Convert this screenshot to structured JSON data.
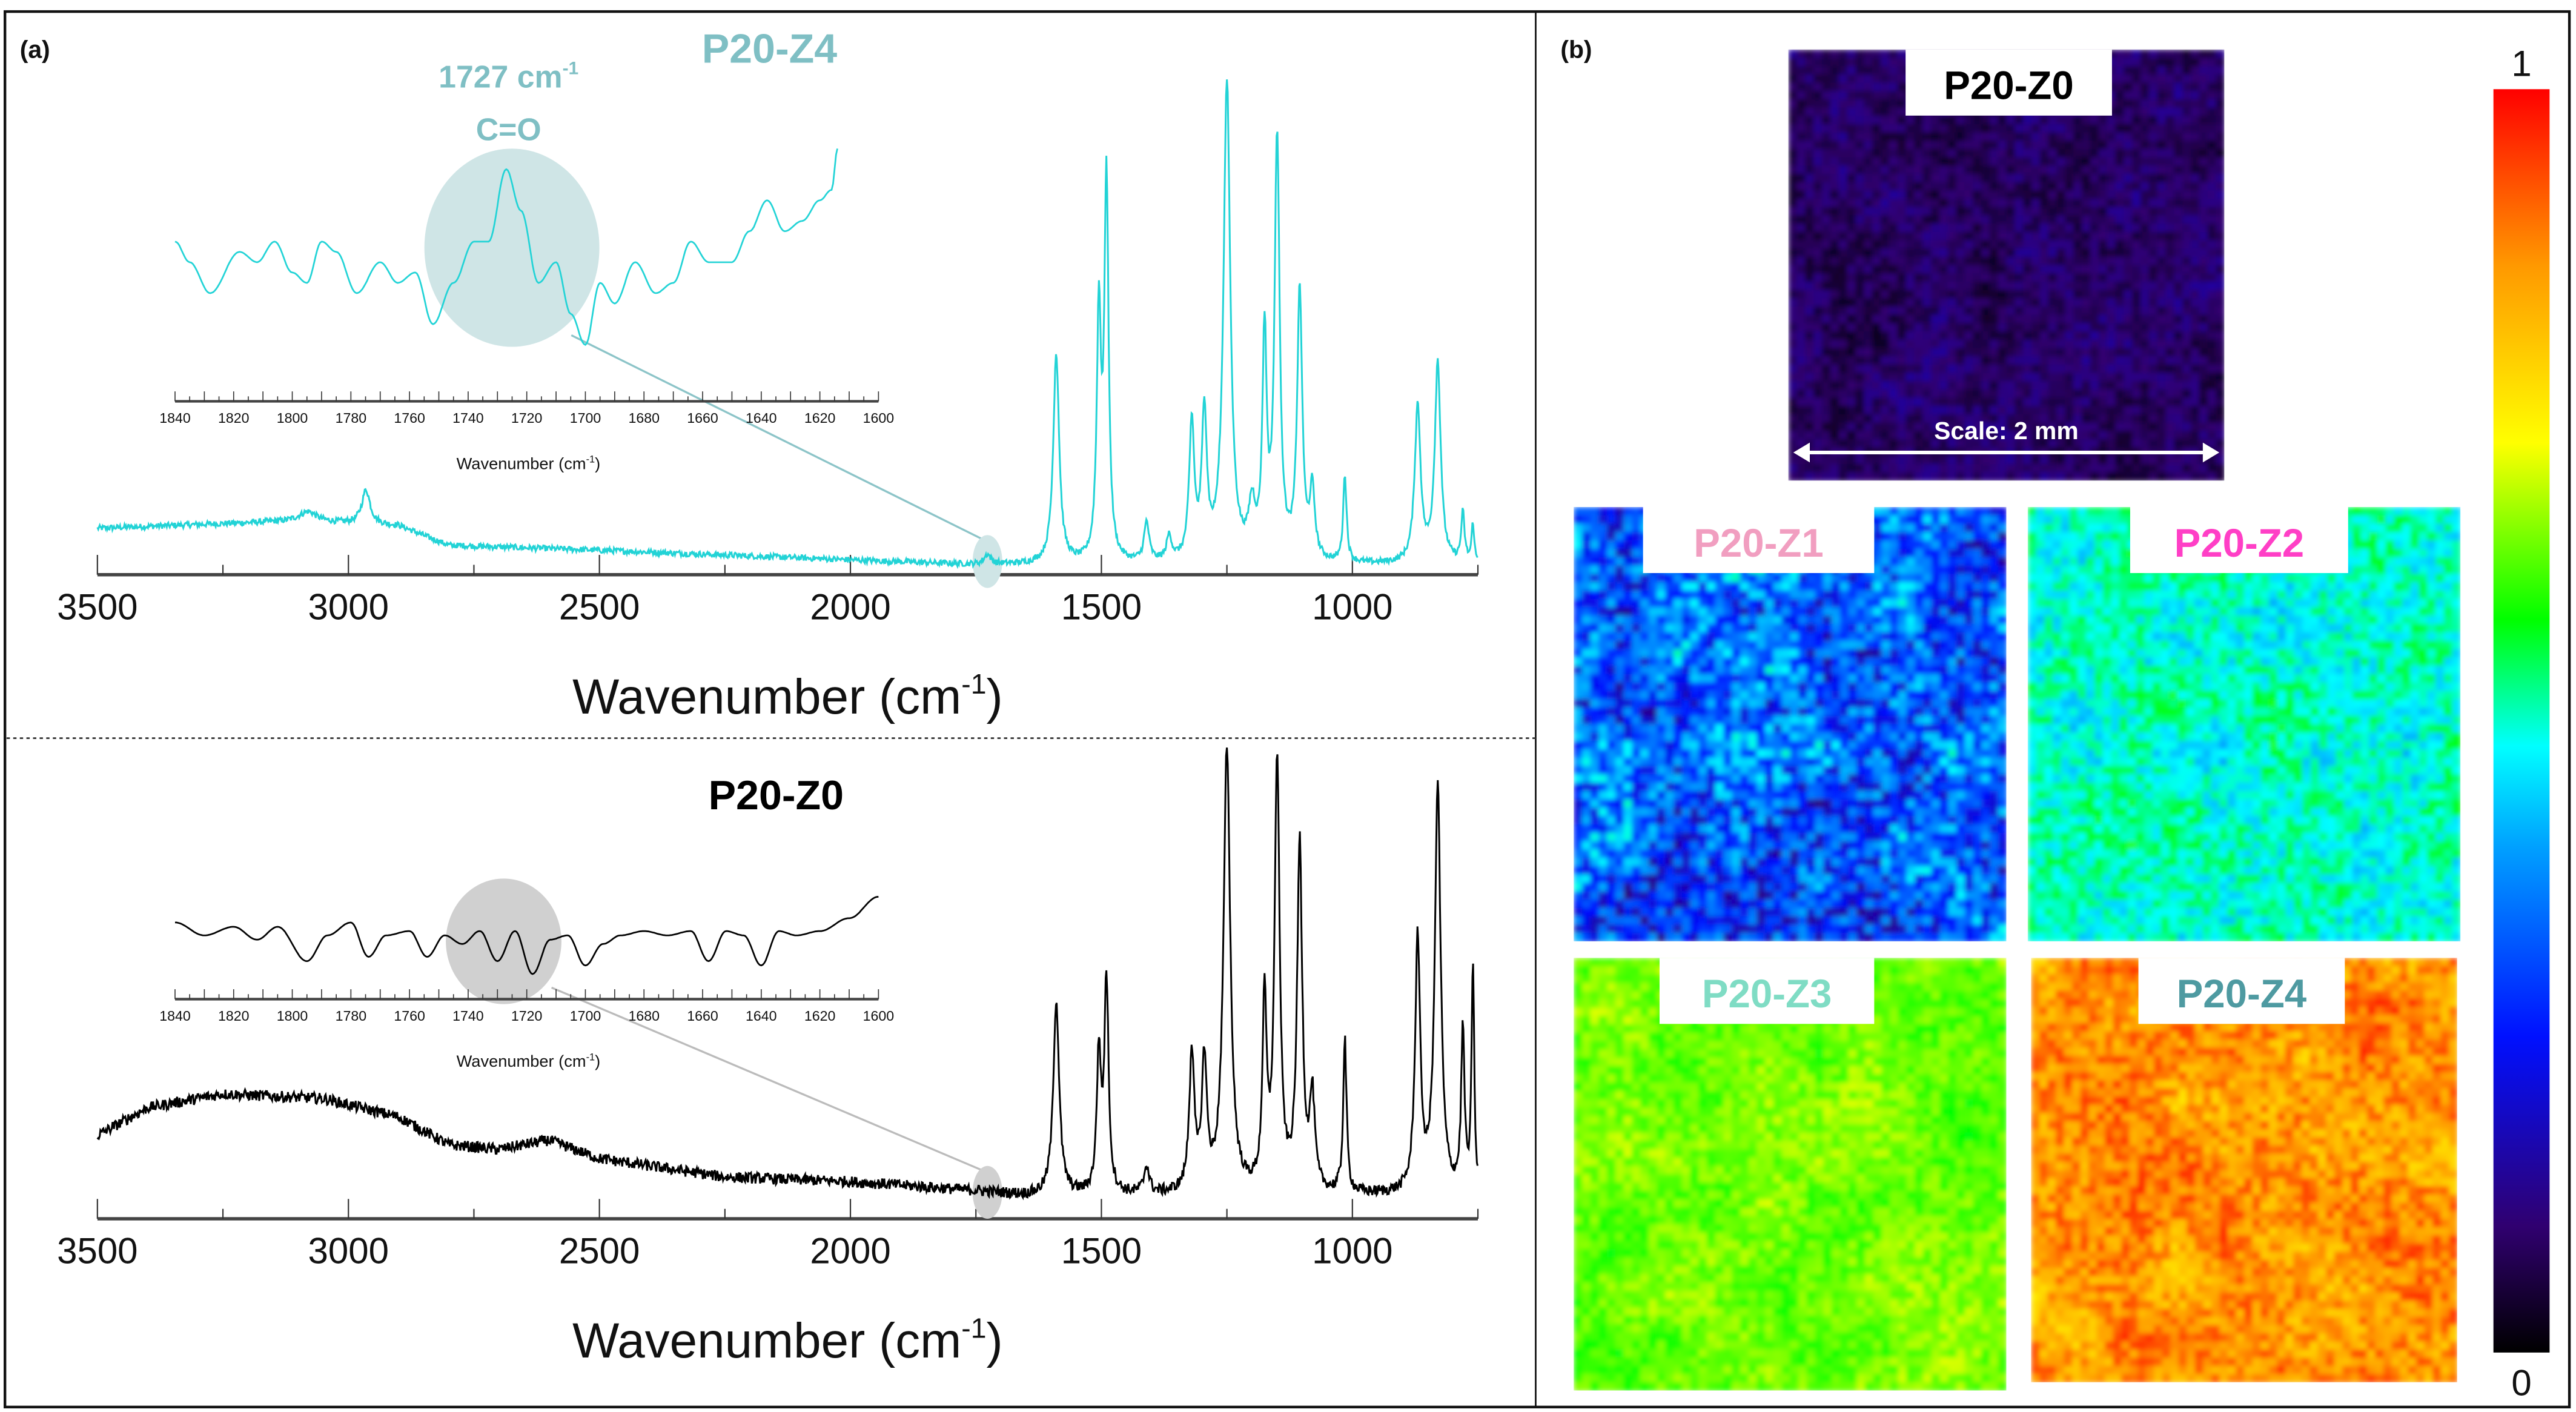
{
  "panel_a_label": "(a)",
  "panel_b_label": "(b)",
  "chart_data": [
    {
      "type": "line",
      "id": "p20-z4-spectrum",
      "title": "P20-Z4",
      "color": "#22d3d6",
      "title_color": "#7fbfc4",
      "xlabel_base": "Wavenumber (cm",
      "xlabel_sup": "-1",
      "xlabel_end": ")",
      "xlim": [
        3500,
        750
      ],
      "x_ticks": [
        "3500",
        "3000",
        "2500",
        "2000",
        "1500",
        "1000"
      ],
      "baseline": [
        [
          3500,
          0.095
        ],
        [
          3100,
          0.11
        ],
        [
          2900,
          0.1
        ],
        [
          2800,
          0.06
        ],
        [
          2500,
          0.05
        ],
        [
          2000,
          0.03
        ],
        [
          1750,
          0.02
        ],
        [
          750,
          0.02
        ]
      ],
      "peaks": [
        [
          2965,
          0.07,
          10
        ],
        [
          3080,
          0.02,
          20
        ],
        [
          1727,
          0.02,
          8
        ],
        [
          1590,
          0.43,
          7
        ],
        [
          1505,
          0.5,
          5
        ],
        [
          1490,
          0.78,
          5
        ],
        [
          1410,
          0.08,
          6
        ],
        [
          1365,
          0.05,
          6
        ],
        [
          1320,
          0.28,
          6
        ],
        [
          1295,
          0.3,
          6
        ],
        [
          1250,
          0.98,
          8
        ],
        [
          1200,
          0.1,
          8
        ],
        [
          1175,
          0.45,
          5
        ],
        [
          1150,
          0.86,
          6
        ],
        [
          1105,
          0.55,
          6
        ],
        [
          1080,
          0.14,
          6
        ],
        [
          1015,
          0.18,
          4
        ],
        [
          870,
          0.32,
          7
        ],
        [
          830,
          0.41,
          7
        ],
        [
          780,
          0.1,
          4
        ],
        [
          760,
          0.08,
          3
        ]
      ],
      "noise_level": 0.006,
      "annotation": {
        "line1_base": "1727 cm",
        "line1_sup": "-1",
        "line2": "C=O",
        "position_cm-1": 1727
      },
      "inset": {
        "xlim": [
          1840,
          1600
        ],
        "x_ticks": [
          "1840",
          "1820",
          "1800",
          "1780",
          "1760",
          "1740",
          "1720",
          "1700",
          "1680",
          "1660",
          "1640",
          "1620",
          "1600"
        ],
        "xlabel_base": "Wavenumber (cm",
        "xlabel_sup": "-1",
        "xlabel_end": ")",
        "points": [
          [
            1840,
            0.55
          ],
          [
            1835,
            0.45
          ],
          [
            1828,
            0.3
          ],
          [
            1818,
            0.5
          ],
          [
            1812,
            0.45
          ],
          [
            1806,
            0.55
          ],
          [
            1800,
            0.4
          ],
          [
            1795,
            0.35
          ],
          [
            1790,
            0.55
          ],
          [
            1785,
            0.5
          ],
          [
            1778,
            0.3
          ],
          [
            1770,
            0.45
          ],
          [
            1764,
            0.35
          ],
          [
            1758,
            0.4
          ],
          [
            1752,
            0.15
          ],
          [
            1745,
            0.35
          ],
          [
            1738,
            0.55
          ],
          [
            1733,
            0.55
          ],
          [
            1727,
            0.9
          ],
          [
            1722,
            0.7
          ],
          [
            1716,
            0.35
          ],
          [
            1710,
            0.45
          ],
          [
            1705,
            0.2
          ],
          [
            1700,
            0.05
          ],
          [
            1695,
            0.35
          ],
          [
            1690,
            0.25
          ],
          [
            1683,
            0.45
          ],
          [
            1676,
            0.3
          ],
          [
            1670,
            0.35
          ],
          [
            1664,
            0.55
          ],
          [
            1658,
            0.45
          ],
          [
            1650,
            0.45
          ],
          [
            1644,
            0.6
          ],
          [
            1638,
            0.75
          ],
          [
            1632,
            0.6
          ],
          [
            1626,
            0.65
          ],
          [
            1620,
            0.75
          ],
          [
            1616,
            0.8
          ],
          [
            1614,
            1.0
          ]
        ],
        "highlight_color": "#cfe5e6"
      }
    },
    {
      "type": "line",
      "id": "p20-z0-spectrum",
      "title": "P20-Z0",
      "color": "#000000",
      "title_color": "#000000",
      "xlabel_base": "Wavenumber (cm",
      "xlabel_sup": "-1",
      "xlabel_end": ")",
      "xlim": [
        3500,
        750
      ],
      "x_ticks": [
        "3500",
        "3000",
        "2500",
        "2000",
        "1500",
        "1000"
      ],
      "baseline": [
        [
          3500,
          0.18
        ],
        [
          3400,
          0.24
        ],
        [
          3250,
          0.27
        ],
        [
          3050,
          0.26
        ],
        [
          2900,
          0.22
        ],
        [
          2800,
          0.16
        ],
        [
          2700,
          0.15
        ],
        [
          2600,
          0.17
        ],
        [
          2500,
          0.13
        ],
        [
          2250,
          0.09
        ],
        [
          2000,
          0.08
        ],
        [
          1750,
          0.06
        ],
        [
          1650,
          0.05
        ],
        [
          750,
          0.05
        ]
      ],
      "peaks": [
        [
          1590,
          0.42,
          7
        ],
        [
          1505,
          0.3,
          5
        ],
        [
          1490,
          0.46,
          5
        ],
        [
          1410,
          0.06,
          6
        ],
        [
          1320,
          0.3,
          6
        ],
        [
          1295,
          0.28,
          6
        ],
        [
          1250,
          0.96,
          8
        ],
        [
          1175,
          0.4,
          5
        ],
        [
          1150,
          0.93,
          6
        ],
        [
          1105,
          0.75,
          6
        ],
        [
          1080,
          0.2,
          6
        ],
        [
          1015,
          0.33,
          4
        ],
        [
          870,
          0.55,
          6
        ],
        [
          830,
          0.88,
          7
        ],
        [
          780,
          0.35,
          4
        ],
        [
          760,
          0.5,
          3
        ]
      ],
      "noise_level": 0.012,
      "inset": {
        "xlim": [
          1840,
          1600
        ],
        "x_ticks": [
          "1840",
          "1820",
          "1800",
          "1780",
          "1760",
          "1740",
          "1720",
          "1700",
          "1680",
          "1660",
          "1640",
          "1620",
          "1600"
        ],
        "xlabel_base": "Wavenumber (cm",
        "xlabel_sup": "-1",
        "xlabel_end": ")",
        "points": [
          [
            1840,
            0.7
          ],
          [
            1830,
            0.55
          ],
          [
            1820,
            0.65
          ],
          [
            1812,
            0.5
          ],
          [
            1805,
            0.65
          ],
          [
            1795,
            0.25
          ],
          [
            1788,
            0.55
          ],
          [
            1780,
            0.7
          ],
          [
            1774,
            0.3
          ],
          [
            1768,
            0.55
          ],
          [
            1760,
            0.6
          ],
          [
            1754,
            0.3
          ],
          [
            1748,
            0.55
          ],
          [
            1742,
            0.45
          ],
          [
            1736,
            0.6
          ],
          [
            1730,
            0.25
          ],
          [
            1724,
            0.6
          ],
          [
            1718,
            0.1
          ],
          [
            1712,
            0.5
          ],
          [
            1706,
            0.55
          ],
          [
            1700,
            0.2
          ],
          [
            1694,
            0.45
          ],
          [
            1688,
            0.55
          ],
          [
            1680,
            0.6
          ],
          [
            1672,
            0.55
          ],
          [
            1664,
            0.6
          ],
          [
            1658,
            0.25
          ],
          [
            1652,
            0.6
          ],
          [
            1646,
            0.55
          ],
          [
            1640,
            0.2
          ],
          [
            1634,
            0.6
          ],
          [
            1628,
            0.55
          ],
          [
            1620,
            0.6
          ],
          [
            1610,
            0.75
          ],
          [
            1600,
            1.0
          ]
        ],
        "highlight_color": "#d0d0d0"
      }
    },
    {
      "type": "heatmap",
      "id": "carbonyl-maps",
      "colorbar": {
        "min_label": "0",
        "max_label": "1",
        "range": [
          0,
          1
        ]
      },
      "scale_label": "Scale: 2 mm",
      "maps": [
        {
          "label": "P20-Z0",
          "label_color": "#000000",
          "mean_intensity": 0.09,
          "spread": 0.05
        },
        {
          "label": "P20-Z1",
          "label_color": "#f19ec0",
          "mean_intensity": 0.33,
          "spread": 0.17
        },
        {
          "label": "P20-Z2",
          "label_color": "#ff3fc6",
          "mean_intensity": 0.5,
          "spread": 0.08
        },
        {
          "label": "P20-Z3",
          "label_color": "#7fdcc4",
          "mean_intensity": 0.64,
          "spread": 0.05
        },
        {
          "label": "P20-Z4",
          "label_color": "#4e9aa1",
          "mean_intensity": 0.86,
          "spread": 0.09
        }
      ]
    }
  ]
}
